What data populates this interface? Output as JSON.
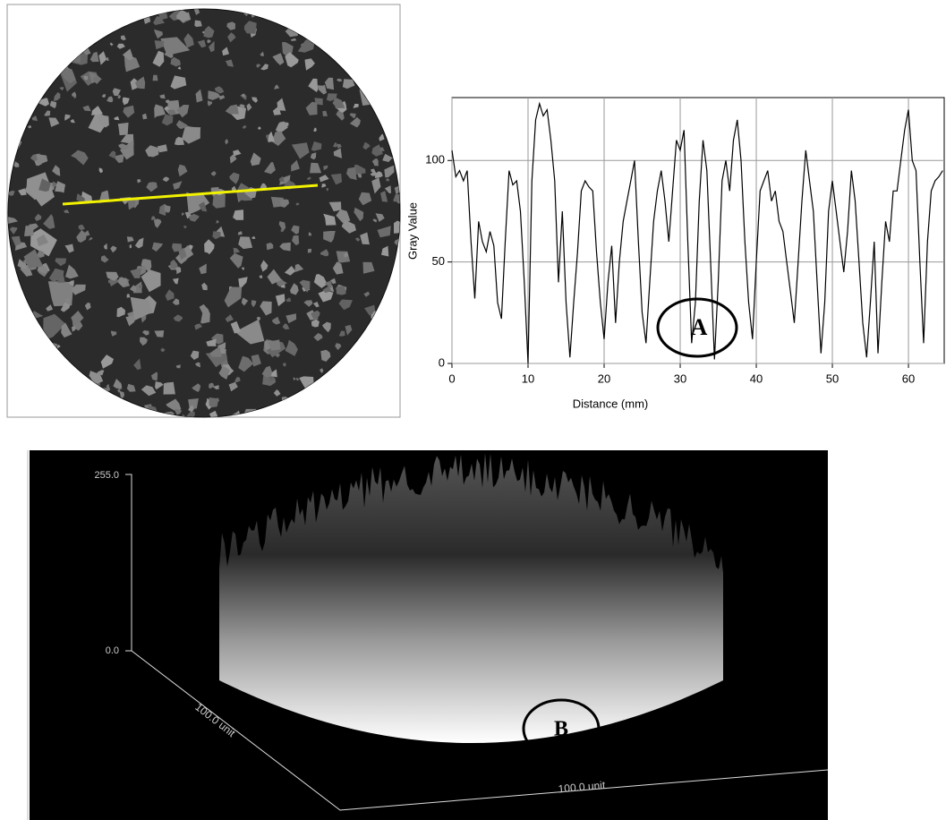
{
  "chart_data": {
    "type": "line",
    "x_label": "Distance (mm)",
    "y_label": "Gray Value",
    "annotation": "A",
    "x": [
      0,
      0.5,
      1,
      1.5,
      2,
      2.5,
      3,
      3.5,
      4,
      4.5,
      5,
      5.5,
      6,
      6.5,
      7,
      7.5,
      8,
      8.5,
      9,
      9.5,
      10,
      10.5,
      11,
      11.5,
      12,
      12.5,
      13,
      13.5,
      14,
      14.5,
      15,
      15.5,
      16,
      16.5,
      17,
      17.5,
      18,
      18.5,
      19,
      19.5,
      20,
      20.5,
      21,
      21.5,
      22,
      22.5,
      23,
      23.5,
      24,
      24.5,
      25,
      25.5,
      26,
      26.5,
      27,
      27.5,
      28,
      28.5,
      29,
      29.5,
      30,
      30.5,
      31,
      31.5,
      32,
      32.5,
      33,
      33.5,
      34,
      34.5,
      35,
      35.5,
      36,
      36.5,
      37,
      37.5,
      38,
      38.5,
      39,
      39.5,
      40,
      40.5,
      41,
      41.5,
      42,
      42.5,
      43,
      43.5,
      44,
      44.5,
      45,
      45.5,
      46,
      46.5,
      47,
      47.5,
      48,
      48.5,
      49,
      49.5,
      50,
      50.5,
      51,
      51.5,
      52,
      52.5,
      53,
      53.5,
      54,
      54.5,
      55,
      55.5,
      56,
      56.5,
      57,
      57.5,
      58,
      58.5,
      59,
      59.5,
      60,
      60.5,
      61,
      61.5,
      62,
      62.5,
      63,
      63.5,
      64,
      64.5
    ],
    "values": [
      105,
      92,
      95,
      90,
      95,
      60,
      32,
      70,
      60,
      55,
      65,
      58,
      30,
      22,
      60,
      95,
      88,
      90,
      75,
      40,
      0,
      90,
      120,
      128,
      122,
      125,
      110,
      90,
      40,
      75,
      30,
      3,
      30,
      55,
      85,
      90,
      87,
      85,
      55,
      30,
      12,
      40,
      58,
      20,
      50,
      70,
      80,
      90,
      100,
      60,
      25,
      10,
      40,
      70,
      85,
      95,
      80,
      60,
      85,
      110,
      105,
      115,
      60,
      10,
      30,
      80,
      110,
      95,
      50,
      2,
      40,
      90,
      100,
      85,
      110,
      120,
      100,
      60,
      30,
      12,
      50,
      85,
      90,
      95,
      80,
      85,
      70,
      65,
      50,
      35,
      20,
      50,
      80,
      105,
      90,
      75,
      40,
      5,
      30,
      75,
      90,
      75,
      60,
      45,
      65,
      95,
      80,
      50,
      20,
      3,
      30,
      60,
      5,
      40,
      70,
      60,
      85,
      85,
      100,
      115,
      125,
      100,
      95,
      50,
      10,
      60,
      85,
      90,
      92,
      95
    ],
    "color": "#000000",
    "xlim": [
      0,
      64.7
    ],
    "ylim": [
      0,
      131
    ],
    "xticks": [
      0,
      10,
      20,
      30,
      40,
      50,
      60
    ],
    "yticks": [
      0,
      50,
      100
    ],
    "grid": true
  },
  "surface_plot": {
    "z_top_label": "255.0",
    "z_bottom_label": "0.0",
    "left_axis_label": "100.0 unit",
    "bottom_axis_label": "100.0 unit",
    "annotation": "B"
  }
}
